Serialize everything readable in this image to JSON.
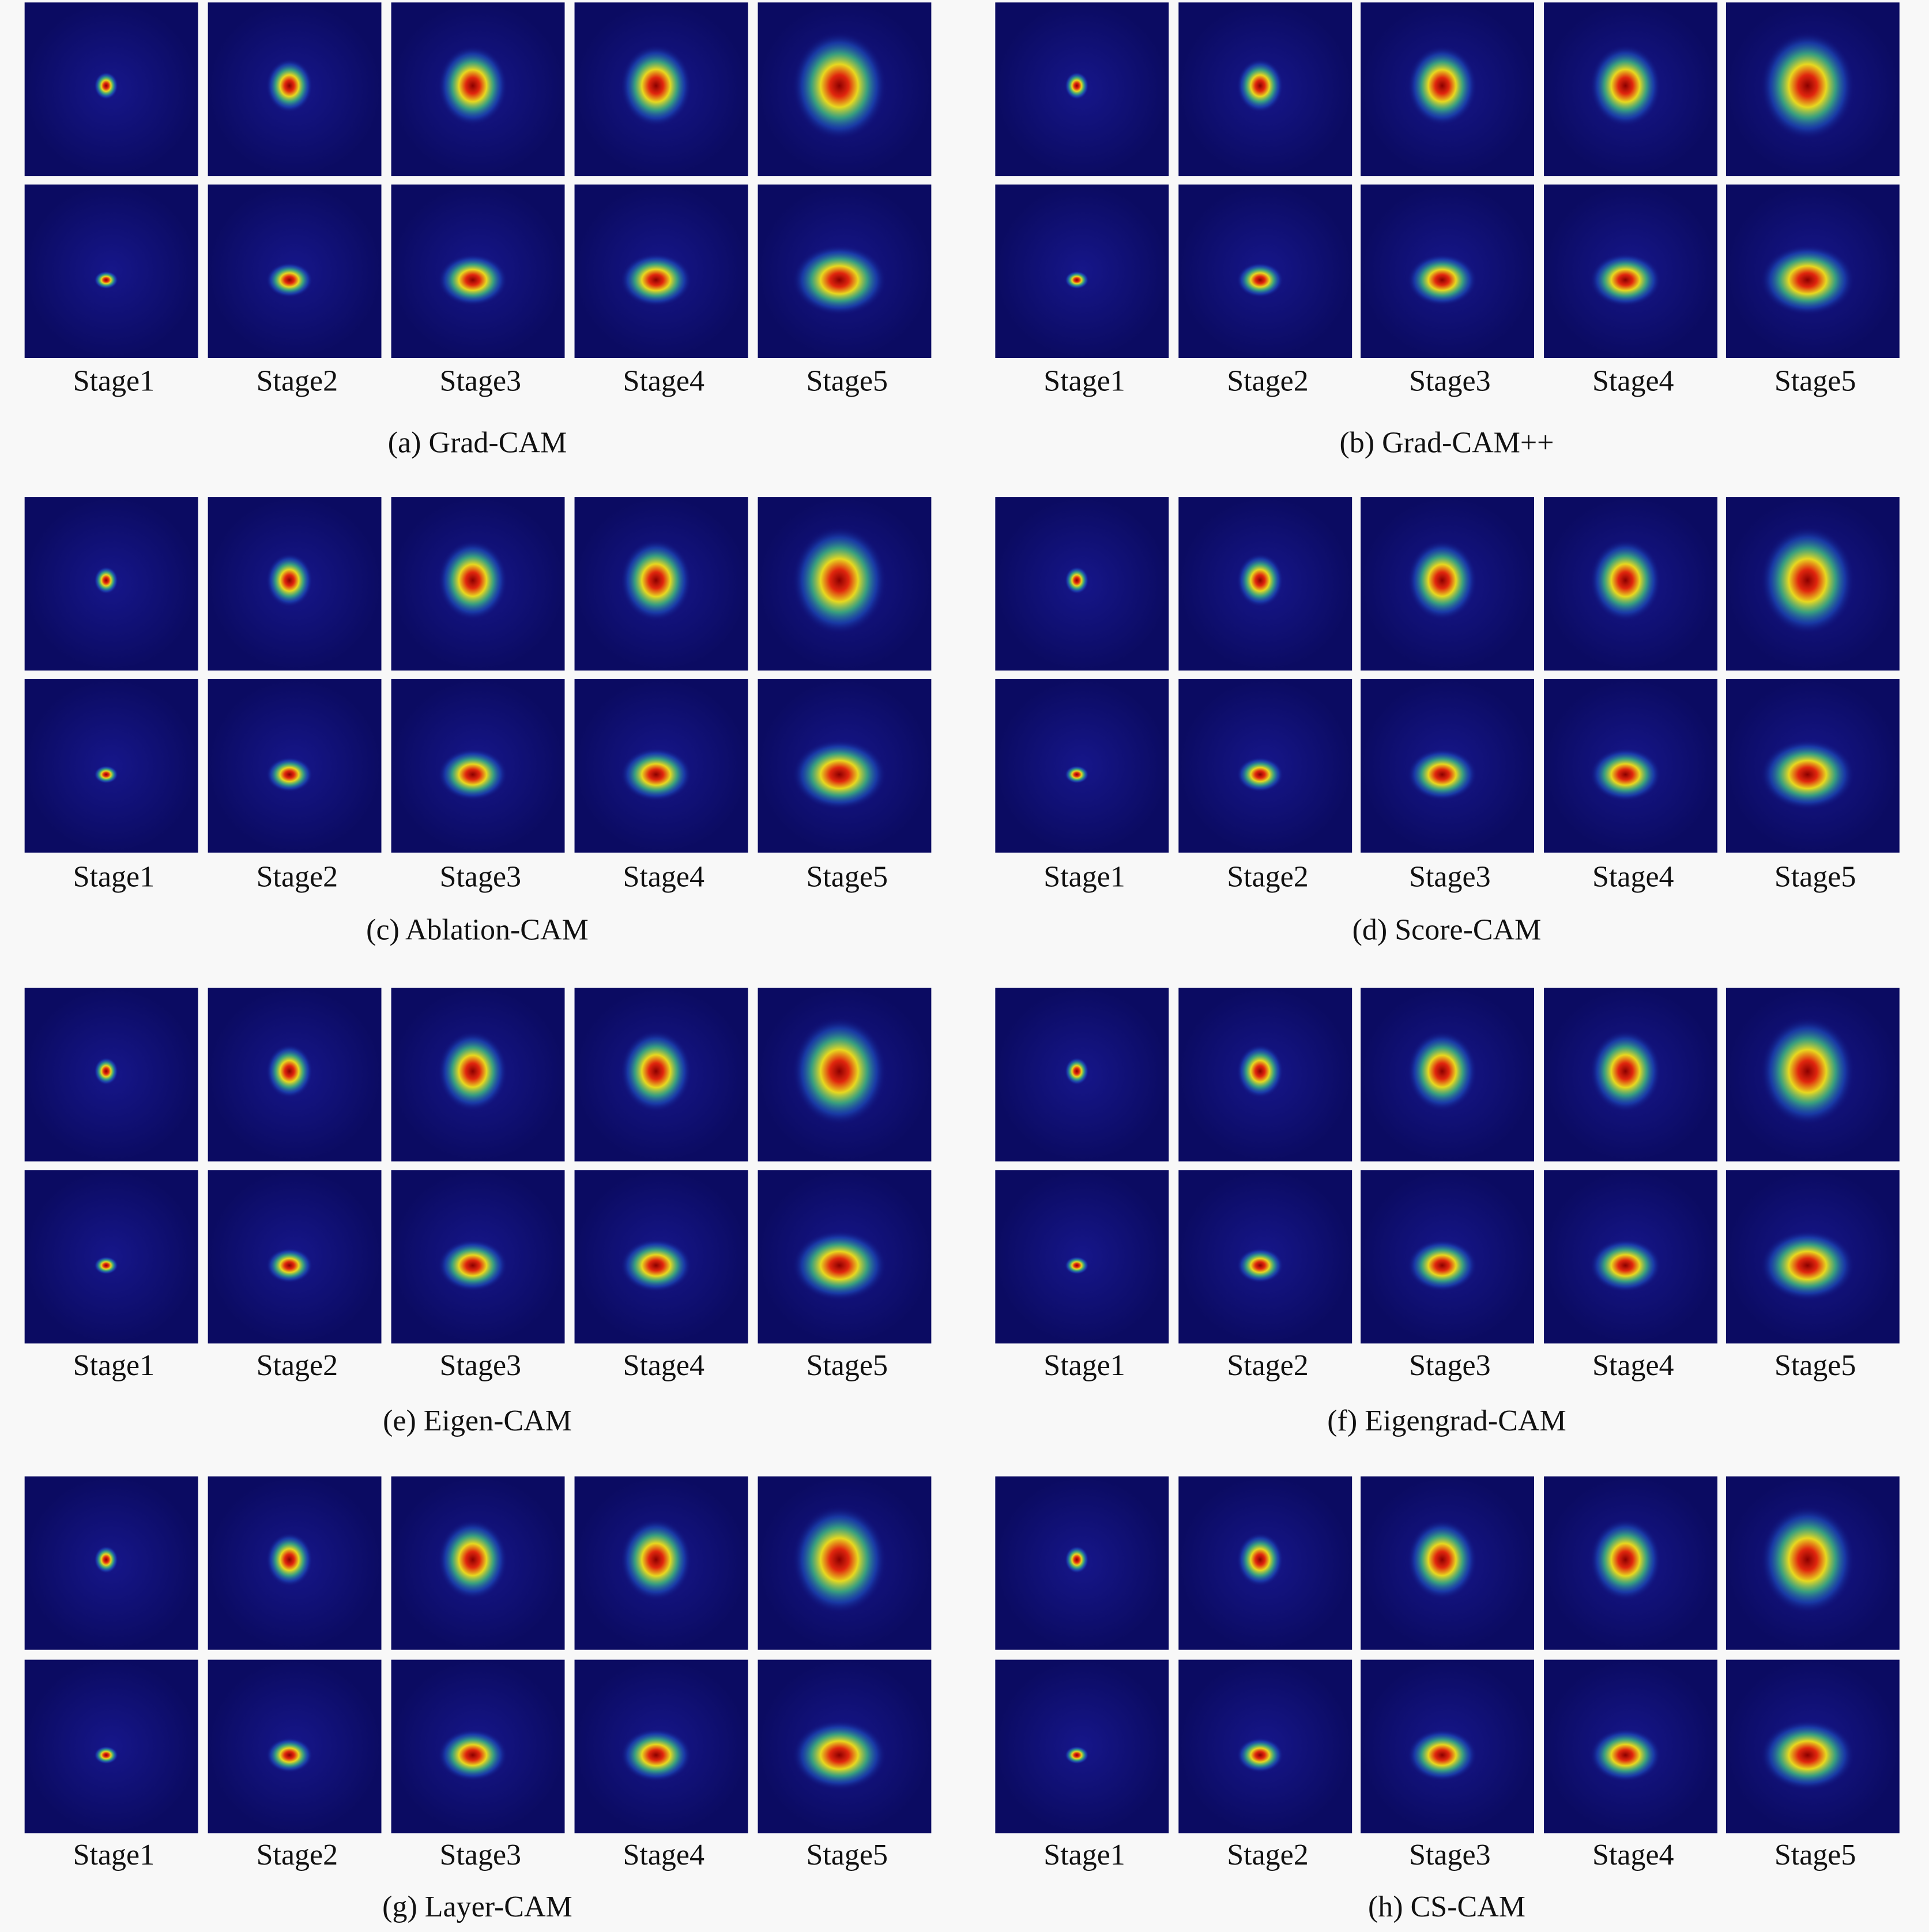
{
  "panels": [
    {
      "caption": "(a) Grad-CAM",
      "labels": [
        "Stage1",
        "Stage2",
        "Stage3",
        "Stage4",
        "Stage5"
      ]
    },
    {
      "caption": "(b) Grad-CAM++",
      "labels": [
        "Stage1",
        "Stage2",
        "Stage3",
        "Stage4",
        "Stage5"
      ]
    },
    {
      "caption": "(c) Ablation-CAM",
      "labels": [
        "Stage1",
        "Stage2",
        "Stage3",
        "Stage4",
        "Stage5"
      ]
    },
    {
      "caption": "(d) Score-CAM",
      "labels": [
        "Stage1",
        "Stage2",
        "Stage3",
        "Stage4",
        "Stage5"
      ]
    },
    {
      "caption": "(e) Eigen-CAM",
      "labels": [
        "Stage1",
        "Stage2",
        "Stage3",
        "Stage4",
        "Stage5"
      ]
    },
    {
      "caption": "(f) Eigengrad-CAM",
      "labels": [
        "Stage1",
        "Stage2",
        "Stage3",
        "Stage4",
        "Stage5"
      ]
    },
    {
      "caption": "(g) Layer-CAM",
      "labels": [
        "Stage1",
        "Stage2",
        "Stage3",
        "Stage4",
        "Stage5"
      ]
    },
    {
      "caption": "(h) CS-CAM",
      "labels": [
        "Stage1",
        "Stage2",
        "Stage3",
        "Stage4",
        "Stage5"
      ]
    }
  ]
}
